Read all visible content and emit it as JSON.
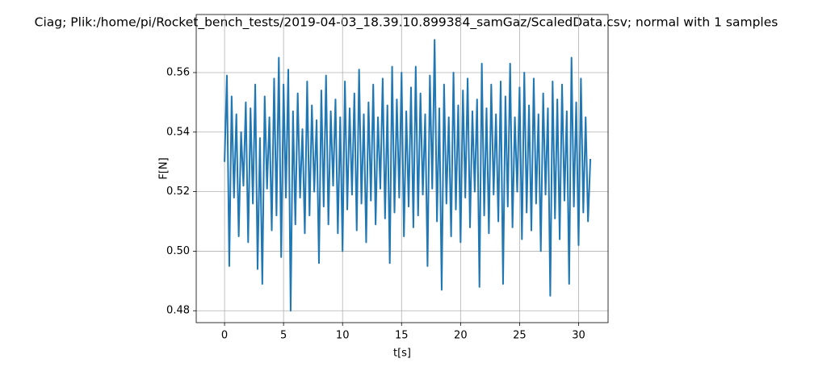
{
  "chart_data": {
    "type": "line",
    "title": "Ciag; Plik:/home/pi/Rocket_bench_tests/2019-04-03_18.39.10.899384_samGaz/ScaledData.csv; normal with 1 samples",
    "xlabel": "t[s]",
    "ylabel": "F[N]",
    "x": [
      0,
      0.2,
      0.4,
      0.6,
      0.8,
      1,
      1.2,
      1.4,
      1.6,
      1.8,
      2,
      2.2,
      2.4,
      2.6,
      2.8,
      3,
      3.2,
      3.4,
      3.6,
      3.8,
      4,
      4.2,
      4.4,
      4.6,
      4.8,
      5,
      5.2,
      5.4,
      5.6,
      5.8,
      6,
      6.2,
      6.4,
      6.6,
      6.8,
      7,
      7.2,
      7.4,
      7.6,
      7.8,
      8,
      8.2,
      8.4,
      8.6,
      8.8,
      9,
      9.2,
      9.4,
      9.6,
      9.8,
      10,
      10.2,
      10.4,
      10.6,
      10.8,
      11,
      11.2,
      11.4,
      11.6,
      11.8,
      12,
      12.2,
      12.4,
      12.6,
      12.8,
      13,
      13.2,
      13.4,
      13.6,
      13.8,
      14,
      14.2,
      14.4,
      14.6,
      14.8,
      15,
      15.2,
      15.4,
      15.6,
      15.8,
      16,
      16.2,
      16.4,
      16.6,
      16.8,
      17,
      17.2,
      17.4,
      17.6,
      17.8,
      18,
      18.2,
      18.4,
      18.6,
      18.8,
      19,
      19.2,
      19.4,
      19.6,
      19.8,
      20,
      20.2,
      20.4,
      20.6,
      20.8,
      21,
      21.2,
      21.4,
      21.6,
      21.8,
      22,
      22.2,
      22.4,
      22.6,
      22.8,
      23,
      23.2,
      23.4,
      23.6,
      23.8,
      24,
      24.2,
      24.4,
      24.6,
      24.8,
      25,
      25.2,
      25.4,
      25.6,
      25.8,
      26,
      26.2,
      26.4,
      26.6,
      26.8,
      27,
      27.2,
      27.4,
      27.6,
      27.8,
      28,
      28.2,
      28.4,
      28.6,
      28.8,
      29,
      29.2,
      29.4,
      29.6,
      29.8,
      30,
      30.2,
      30.4,
      30.6,
      30.8,
      31
    ],
    "values": [
      0.53,
      0.559,
      0.495,
      0.552,
      0.518,
      0.546,
      0.505,
      0.54,
      0.522,
      0.55,
      0.503,
      0.548,
      0.516,
      0.556,
      0.494,
      0.538,
      0.489,
      0.552,
      0.521,
      0.545,
      0.507,
      0.558,
      0.512,
      0.565,
      0.498,
      0.556,
      0.518,
      0.561,
      0.48,
      0.547,
      0.509,
      0.553,
      0.518,
      0.541,
      0.506,
      0.557,
      0.512,
      0.549,
      0.52,
      0.544,
      0.496,
      0.554,
      0.515,
      0.559,
      0.509,
      0.547,
      0.522,
      0.551,
      0.506,
      0.545,
      0.5,
      0.557,
      0.514,
      0.548,
      0.519,
      0.553,
      0.507,
      0.561,
      0.516,
      0.546,
      0.503,
      0.55,
      0.517,
      0.556,
      0.509,
      0.545,
      0.521,
      0.558,
      0.511,
      0.549,
      0.496,
      0.562,
      0.513,
      0.551,
      0.518,
      0.56,
      0.505,
      0.547,
      0.515,
      0.555,
      0.508,
      0.562,
      0.512,
      0.553,
      0.519,
      0.546,
      0.495,
      0.559,
      0.521,
      0.571,
      0.51,
      0.548,
      0.487,
      0.556,
      0.516,
      0.545,
      0.505,
      0.56,
      0.514,
      0.549,
      0.503,
      0.554,
      0.518,
      0.558,
      0.508,
      0.547,
      0.52,
      0.551,
      0.488,
      0.563,
      0.512,
      0.548,
      0.506,
      0.556,
      0.519,
      0.546,
      0.51,
      0.557,
      0.489,
      0.552,
      0.515,
      0.563,
      0.508,
      0.545,
      0.52,
      0.555,
      0.504,
      0.56,
      0.513,
      0.549,
      0.507,
      0.558,
      0.516,
      0.546,
      0.5,
      0.553,
      0.519,
      0.548,
      0.485,
      0.557,
      0.511,
      0.551,
      0.504,
      0.556,
      0.517,
      0.547,
      0.489,
      0.565,
      0.515,
      0.55,
      0.502,
      0.558,
      0.513,
      0.545,
      0.51,
      0.531
    ],
    "color": "#1f77b4",
    "xlim": [
      -2.4,
      32.5
    ],
    "xticks": [
      0,
      5,
      10,
      15,
      20,
      25,
      30
    ],
    "ylim": [
      0.476,
      0.5795
    ],
    "yticks": [
      0.48,
      {
        "value": 0.5,
        "label": "0.50"
      },
      0.52,
      0.54,
      0.56
    ],
    "grid": true
  }
}
